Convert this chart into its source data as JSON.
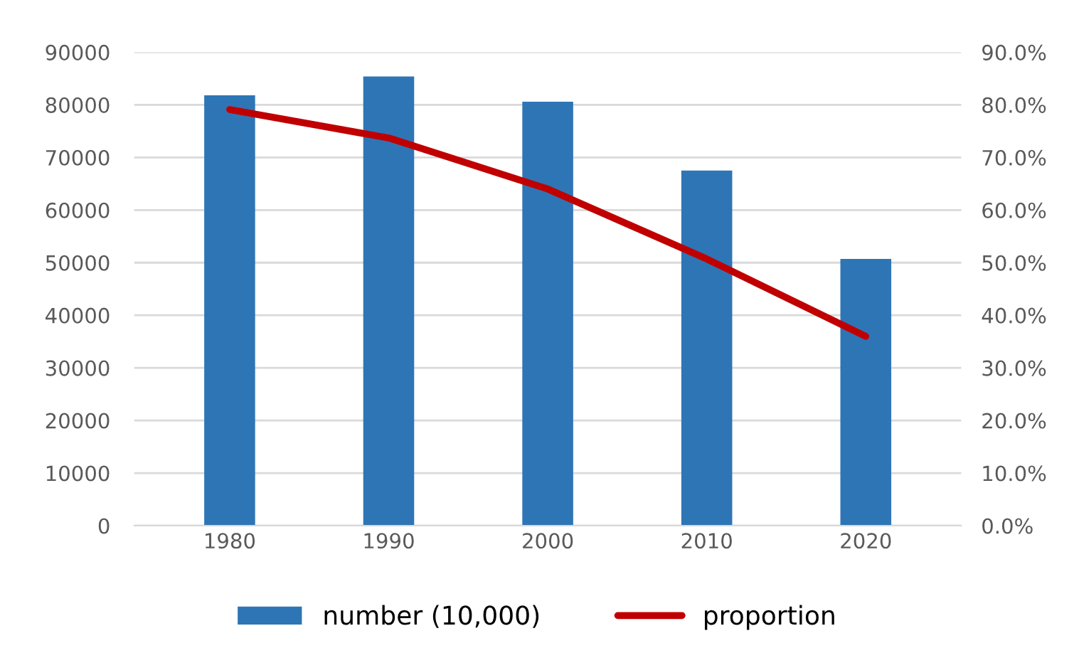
{
  "chart_data": {
    "type": "bar",
    "categories": [
      "1980",
      "1990",
      "2000",
      "2010",
      "2020"
    ],
    "series": [
      {
        "name": "number (10,000)",
        "color": "#2e75b6",
        "values": [
          81800,
          85400,
          80600,
          67500,
          50700
        ]
      },
      {
        "name": "proportion",
        "type": "line",
        "axis": "y2",
        "color": "#c00000",
        "values": [
          79.1,
          73.7,
          64.0,
          50.7,
          36.0
        ]
      }
    ],
    "ylim": [
      0,
      90000
    ],
    "yticks": [
      0,
      10000,
      20000,
      30000,
      40000,
      50000,
      60000,
      70000,
      80000,
      90000
    ],
    "y2lim": [
      0,
      90
    ],
    "y2ticks": [
      {
        "value": 0,
        "label": "0.0%"
      },
      {
        "value": 10,
        "label": "10.0%"
      },
      {
        "value": 20,
        "label": "20.0%"
      },
      {
        "value": 30,
        "label": "30.0%"
      },
      {
        "value": 40,
        "label": "40.0%"
      },
      {
        "value": 50,
        "label": "50.0%"
      },
      {
        "value": 60,
        "label": "60.0%"
      },
      {
        "value": 70,
        "label": "70.0%"
      },
      {
        "value": 80,
        "label": "80.0%"
      },
      {
        "value": 90,
        "label": "90.0%"
      }
    ],
    "grid": "y",
    "legend": "bottom",
    "marker": "none"
  }
}
